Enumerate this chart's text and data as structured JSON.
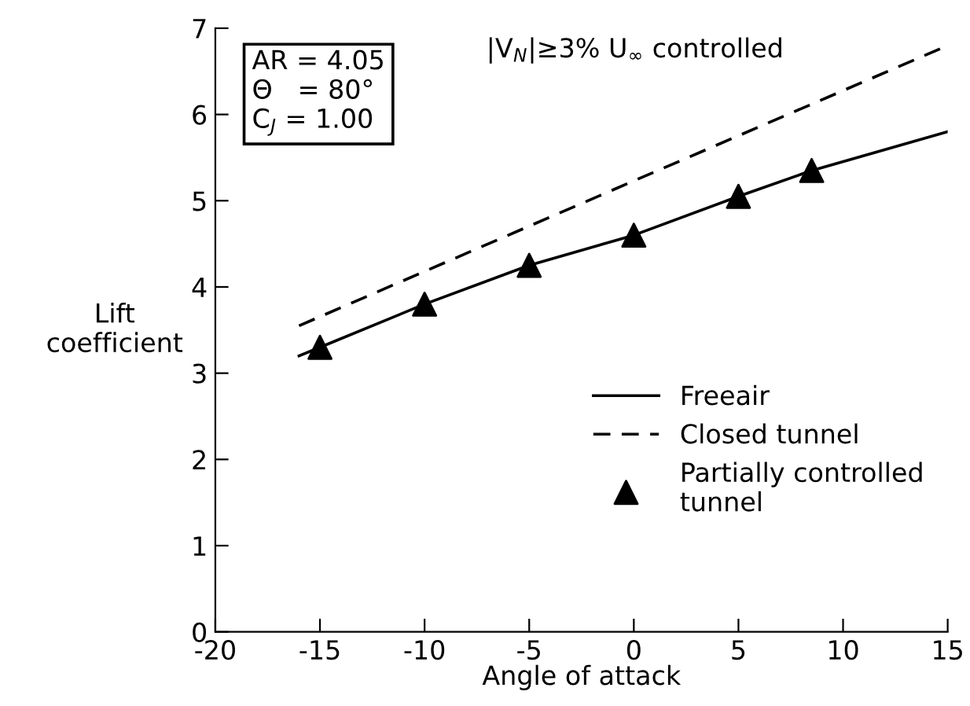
{
  "chart_data": {
    "type": "line",
    "xlabel": "Angle of attack",
    "ylabel": "Lift\ncoefficient",
    "xlim": [
      -20,
      15
    ],
    "ylim": [
      0,
      7
    ],
    "xticks": [
      -20,
      -15,
      -10,
      -5,
      0,
      5,
      10,
      15
    ],
    "yticks": [
      0,
      1,
      2,
      3,
      4,
      5,
      6,
      7
    ],
    "grid": false,
    "legend": "right",
    "annotations": [
      "|V$_{N}$|≥3% U$_{∞}$ controlled",
      "AR = 4.05\nΘ   = 80°\nC$_{J}$ = 1.00"
    ],
    "series": [
      {
        "name": "Freeair",
        "color": "#000000",
        "line_style": "solid",
        "marker": "none",
        "x": [
          -16,
          -15,
          -10,
          -5,
          0,
          5,
          8.5,
          15
        ],
        "values": [
          3.2,
          3.3,
          3.8,
          4.25,
          4.6,
          5.05,
          5.35,
          5.8
        ]
      },
      {
        "name": "Closed tunnel",
        "color": "#000000",
        "line_style": "dashed",
        "marker": "none",
        "x": [
          -16,
          0,
          15
        ],
        "values": [
          3.55,
          5.23,
          6.8
        ]
      },
      {
        "name": "Partially controlled\ntunnel",
        "type": "scatter",
        "color": "#000000",
        "marker": "triangle",
        "x": [
          -15,
          -10,
          -5,
          0,
          5,
          8.5
        ],
        "values": [
          3.3,
          3.8,
          4.25,
          4.6,
          5.05,
          5.35
        ]
      }
    ]
  }
}
